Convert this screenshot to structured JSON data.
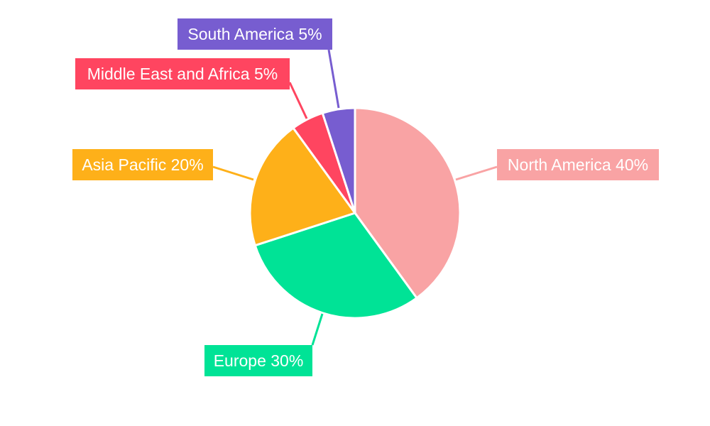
{
  "chart_data": {
    "type": "pie",
    "start_angle": "top, clockwise",
    "slices": [
      {
        "name": "North America",
        "value": 40,
        "label": "North America 40%",
        "color": "#F9A3A4"
      },
      {
        "name": "Europe",
        "value": 30,
        "label": "Europe 30%",
        "color": "#00E396"
      },
      {
        "name": "Asia Pacific",
        "value": 20,
        "label": "Asia Pacific 20%",
        "color": "#FEB019"
      },
      {
        "name": "Middle East and Africa",
        "value": 5,
        "label": "Middle East and Africa 5%",
        "color": "#FF4560"
      },
      {
        "name": "South America",
        "value": 5,
        "label": "South America 5%",
        "color": "#775DD0"
      }
    ],
    "legend": "none"
  }
}
